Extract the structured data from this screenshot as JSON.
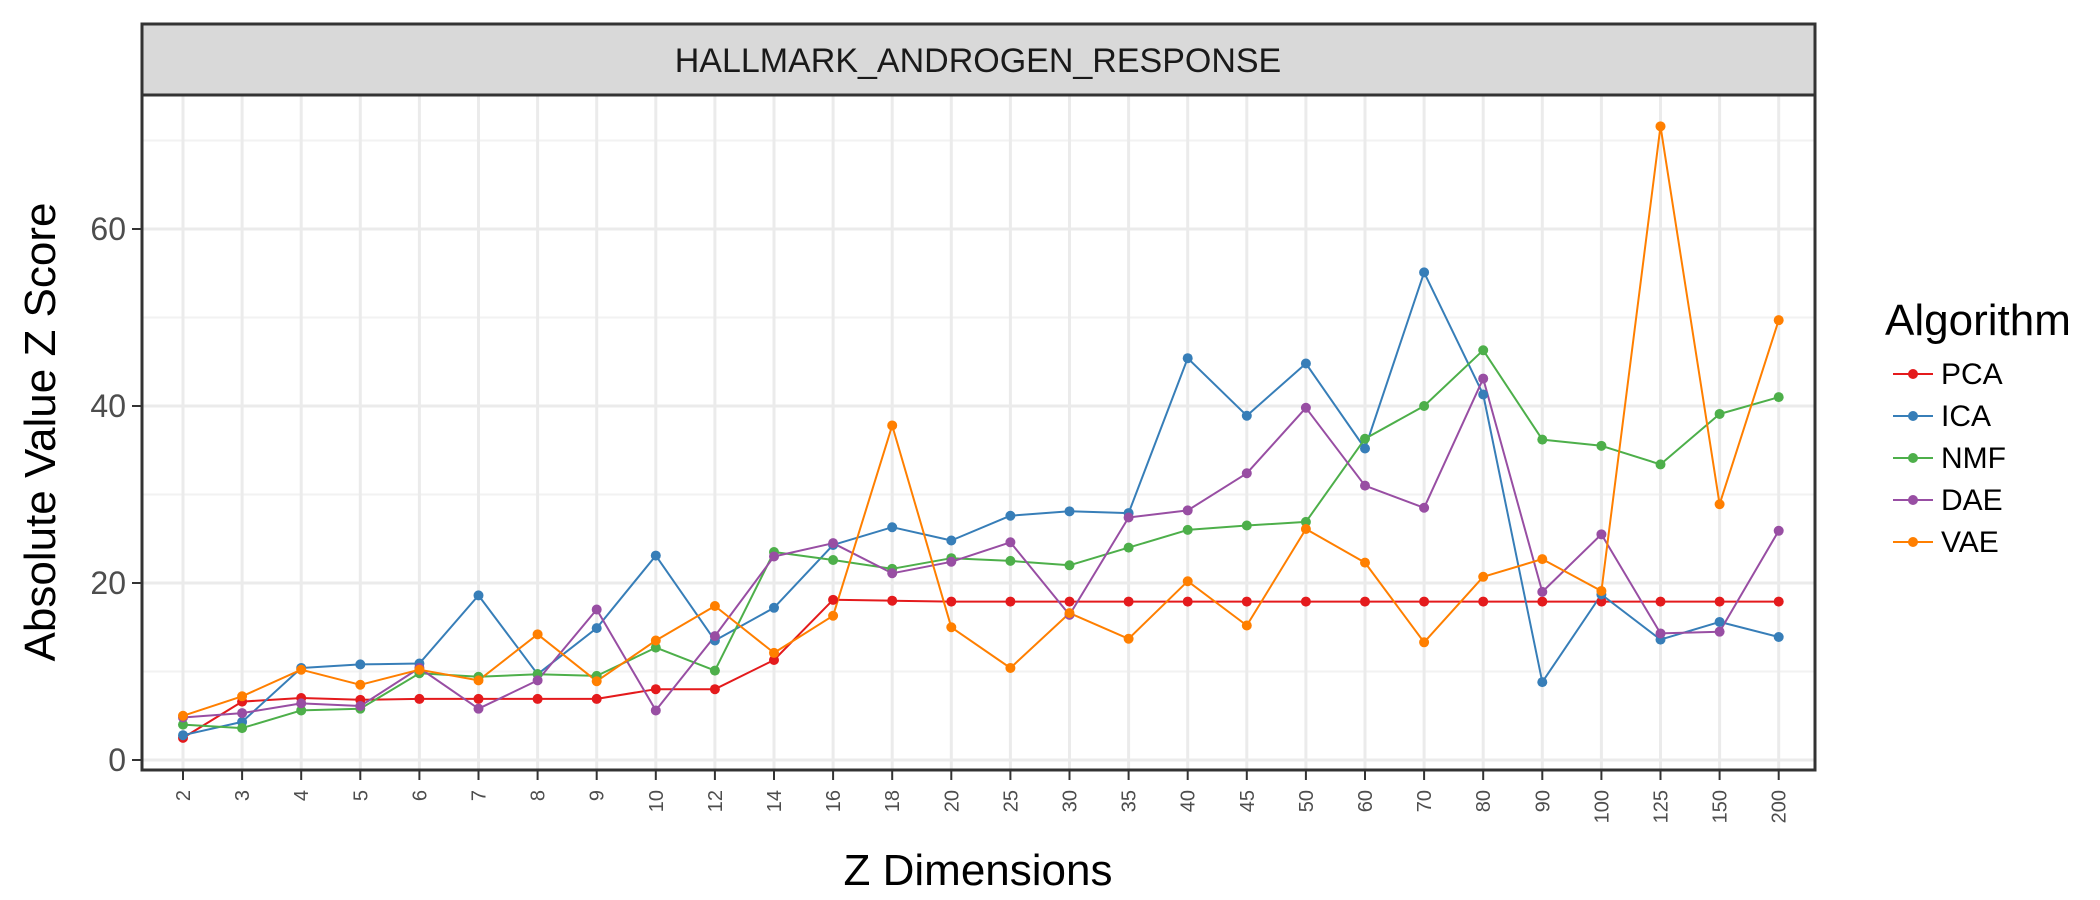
{
  "chart_data": {
    "type": "line",
    "title": "HALLMARK_ANDROGEN_RESPONSE",
    "xlabel": "Z Dimensions",
    "ylabel": "Absolute Value Z Score",
    "categories": [
      "2",
      "3",
      "4",
      "5",
      "6",
      "7",
      "8",
      "9",
      "10",
      "12",
      "14",
      "16",
      "18",
      "20",
      "25",
      "30",
      "35",
      "40",
      "45",
      "50",
      "60",
      "70",
      "80",
      "90",
      "100",
      "125",
      "150",
      "200"
    ],
    "ylim": [
      0,
      75
    ],
    "yticks": [
      0,
      20,
      40,
      60
    ],
    "grid": true,
    "legend": {
      "title": "Algorithm",
      "position": "right"
    },
    "series": [
      {
        "name": "PCA",
        "color": "#E41A1C",
        "values": [
          2.5,
          6.6,
          7.0,
          6.8,
          6.9,
          6.9,
          6.9,
          6.9,
          8.0,
          8.0,
          11.3,
          18.1,
          18.0,
          17.9,
          17.9,
          17.9,
          17.9,
          17.9,
          17.9,
          17.9,
          17.9,
          17.9,
          17.9,
          17.9,
          17.9,
          17.9,
          17.9,
          17.9
        ]
      },
      {
        "name": "ICA",
        "color": "#377EB8",
        "values": [
          2.8,
          4.3,
          10.4,
          10.8,
          10.9,
          18.6,
          9.7,
          14.9,
          23.1,
          13.5,
          17.2,
          24.3,
          26.3,
          24.8,
          27.6,
          28.1,
          27.9,
          45.4,
          38.9,
          44.8,
          35.2,
          55.1,
          41.3,
          8.8,
          18.7,
          13.6,
          15.6,
          13.9
        ]
      },
      {
        "name": "NMF",
        "color": "#4DAF4A",
        "values": [
          4.0,
          3.6,
          5.6,
          5.8,
          9.8,
          9.4,
          9.7,
          9.5,
          12.7,
          10.1,
          23.5,
          22.6,
          21.6,
          22.8,
          22.5,
          22.0,
          24.0,
          26.0,
          26.5,
          26.9,
          36.3,
          40.0,
          46.3,
          36.2,
          35.5,
          33.4,
          39.1,
          41.0
        ]
      },
      {
        "name": "DAE",
        "color": "#984EA3",
        "values": [
          4.8,
          5.3,
          6.4,
          6.1,
          10.4,
          5.8,
          9.0,
          17.0,
          5.6,
          14.0,
          23.0,
          24.5,
          21.1,
          22.4,
          24.6,
          16.4,
          27.4,
          28.2,
          32.4,
          39.8,
          31.0,
          28.5,
          43.1,
          19.0,
          25.5,
          14.3,
          14.5,
          25.9
        ]
      },
      {
        "name": "VAE",
        "color": "#FF7F00",
        "values": [
          5.0,
          7.2,
          10.2,
          8.5,
          10.2,
          9.0,
          14.2,
          8.9,
          13.5,
          17.4,
          12.1,
          16.3,
          37.8,
          15.0,
          10.4,
          16.6,
          13.7,
          20.2,
          15.2,
          26.1,
          22.3,
          13.3,
          20.7,
          22.7,
          19.1,
          71.6,
          28.9,
          49.7
        ]
      }
    ]
  }
}
